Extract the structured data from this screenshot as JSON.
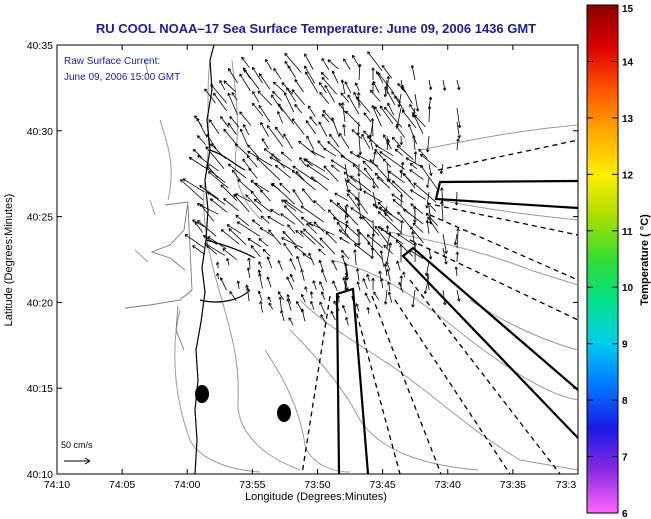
{
  "chart_data": {
    "type": "map",
    "title": "RU COOL  NOAA–17  Sea Surface Temperature:  June 09, 2006 1436 GMT",
    "annotation_line1": "Raw Surface Current:",
    "annotation_line2": "June 09, 2006 15:00 GMT",
    "scale_label": "50 cm/s",
    "xlabel": "Longitude (Degrees:Minutes)",
    "ylabel": "Latitude (Degrees:Minutes)",
    "colorbar_label": "Temperature ( °C)",
    "x_ticks": [
      "74:10",
      "74:05",
      "74:00",
      "73:55",
      "73:50",
      "73:45",
      "73:40",
      "73:35",
      "73:3"
    ],
    "y_ticks": [
      "40:35",
      "40:30",
      "40:25",
      "40:20",
      "40:15",
      "40:10"
    ],
    "colorbar_ticks": [
      "15",
      "14",
      "13",
      "12",
      "11",
      "10",
      "9",
      "8",
      "7",
      "6"
    ],
    "colorbar_range": [
      6,
      15
    ],
    "colorbar_colors": [
      "#ff66ff",
      "#8b2be2",
      "#1a1ae6",
      "#0077ff",
      "#00ccee",
      "#00e08a",
      "#33dd33",
      "#aadd00",
      "#ffee00",
      "#ffaa00",
      "#ff5500",
      "#dd0000",
      "#8b0000"
    ],
    "colors": {
      "title": "#1a1aa6",
      "contour": "#9a9a9a",
      "coast": "#000000"
    }
  }
}
